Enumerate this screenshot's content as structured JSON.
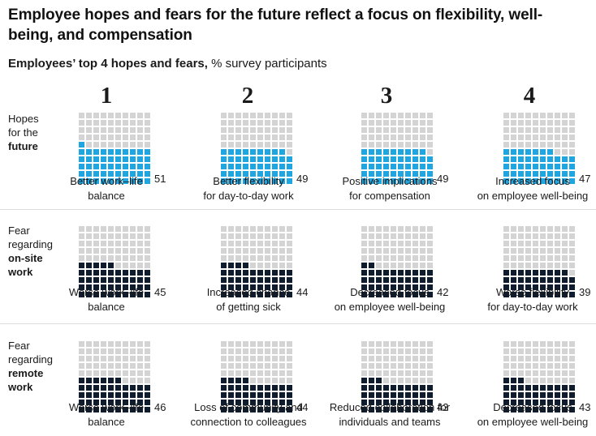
{
  "title": "Employee hopes and fears for the future reflect a focus on flexibility, well-being, and compensation",
  "subtitle_bold": "Employees’ top 4 hopes and fears,",
  "subtitle_rest": " % survey participants",
  "columns": [
    "1",
    "2",
    "3",
    "4"
  ],
  "row_labels": [
    {
      "line1": "Hopes",
      "line2": "for the",
      "line3": "",
      "bold": "future"
    },
    {
      "line1": "Fear",
      "line2": "regarding",
      "line3": "on-site",
      "bold": "work"
    },
    {
      "line1": "Fear",
      "line2": "regarding",
      "line3": "remote",
      "bold": "work"
    }
  ],
  "colors": {
    "hope": "#1fa5e0",
    "fear": "#0f1c2e",
    "empty": "#d4d4d4"
  },
  "chart_data": {
    "type": "waffle",
    "title": "Employee hopes and fears for the future reflect a focus on flexibility, well-being, and compensation",
    "unit": "% survey participants",
    "series": [
      {
        "name": "Hopes for the future",
        "items": [
          {
            "rank": 1,
            "label_line1": "Better work–life",
            "label_line2": "balance",
            "value": 51
          },
          {
            "rank": 2,
            "label_line1": "Better flexibility",
            "label_line2": "for day-to-day work",
            "value": 49
          },
          {
            "rank": 3,
            "label_line1": "Positive implications",
            "label_line2": "for compensation",
            "value": 49
          },
          {
            "rank": 4,
            "label_line1": "Increased focus",
            "label_line2": "on employee well-being",
            "value": 47
          }
        ]
      },
      {
        "name": "Fear regarding on-site work",
        "items": [
          {
            "rank": 1,
            "label_line1": "Worse work–life",
            "label_line2": "balance",
            "value": 45
          },
          {
            "rank": 2,
            "label_line1": "Increased chance",
            "label_line2": "of getting sick",
            "value": 44
          },
          {
            "rank": 3,
            "label_line1": "Decreased focus",
            "label_line2": "on employee well-being",
            "value": 42
          },
          {
            "rank": 4,
            "label_line1": "Worse flexibility",
            "label_line2": "for day-to-day work",
            "value": 39
          }
        ]
      },
      {
        "name": "Fear regarding remote work",
        "items": [
          {
            "rank": 1,
            "label_line1": "Worse work–life",
            "label_line2": "balance",
            "value": 46
          },
          {
            "rank": 2,
            "label_line1": "Loss of community and",
            "label_line2": "connection to colleagues",
            "value": 44
          },
          {
            "rank": 3,
            "label_line1": "Reduced collaboration for",
            "label_line2": "individuals and teams",
            "value": 43
          },
          {
            "rank": 4,
            "label_line1": "Decreased focus",
            "label_line2": "on employee well-being",
            "value": 43
          }
        ]
      }
    ]
  }
}
